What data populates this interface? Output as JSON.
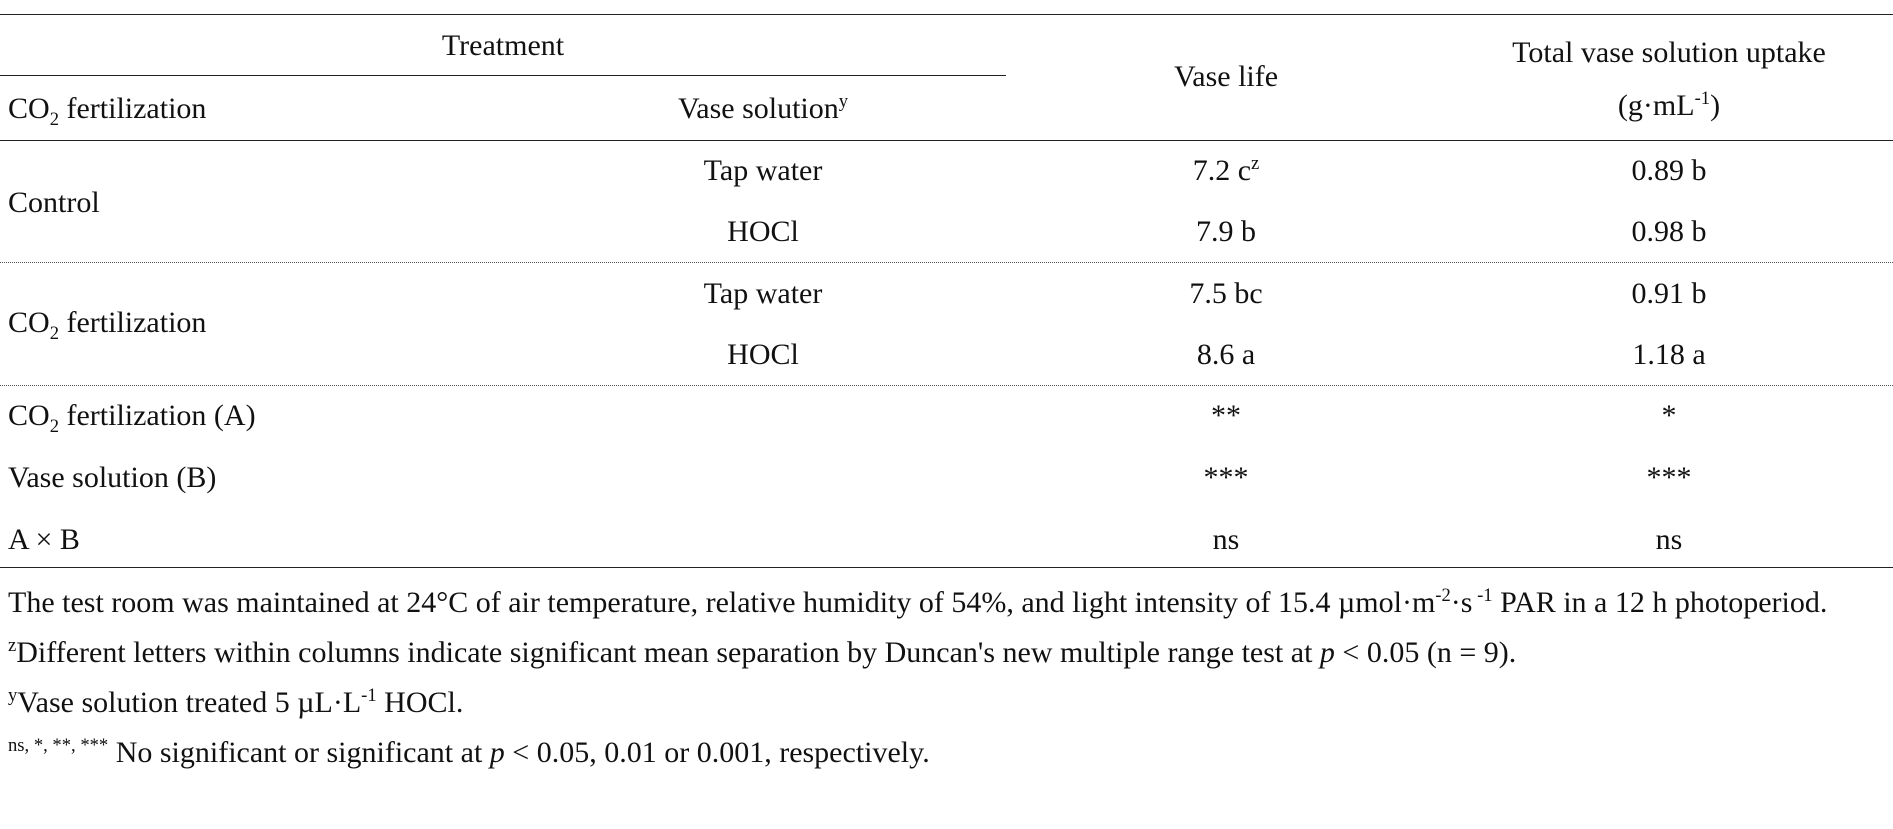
{
  "table": {
    "header": {
      "treatment": "Treatment",
      "co2_column": [
        "CO",
        {
          "sub": "2"
        },
        " fertilization"
      ],
      "solution_column": [
        "Vase solution",
        {
          "sup": "y"
        }
      ],
      "vase_life": "Vase life",
      "uptake_line1": "Total vase solution uptake",
      "uptake_line2": [
        "(g·mL",
        {
          "sup": "-1"
        },
        ")"
      ]
    },
    "groups": [
      {
        "label": "Control",
        "rows": [
          {
            "solution": "Tap water",
            "vase_life": [
              "7.2 c",
              {
                "sup": "z"
              }
            ],
            "uptake": "0.89 b"
          },
          {
            "solution": "HOCl",
            "vase_life": "7.9 b",
            "uptake": "0.98 b"
          }
        ]
      },
      {
        "label": [
          "CO",
          {
            "sub": "2"
          },
          " fertilization"
        ],
        "rows": [
          {
            "solution": "Tap water",
            "vase_life": "7.5 bc",
            "uptake": "0.91 b"
          },
          {
            "solution": "HOCl",
            "vase_life": "8.6 a",
            "uptake": "1.18 a"
          }
        ]
      }
    ],
    "anova": [
      {
        "label": [
          "CO",
          {
            "sub": "2"
          },
          " fertilization (A)"
        ],
        "vase_life": "**",
        "uptake": "*"
      },
      {
        "label": "Vase solution (B)",
        "vase_life": "***",
        "uptake": "***"
      },
      {
        "label": "A × B",
        "vase_life": "ns",
        "uptake": "ns"
      }
    ],
    "notes": [
      [
        "The test room was maintained at 24°C of air temperature, relative humidity of 54%, and light intensity of 15.4 µmol·m",
        {
          "sup": "-2"
        },
        "·s",
        {
          "sup": " -1"
        },
        " PAR in a 12 h photoperiod."
      ],
      [
        {
          "sup": "z"
        },
        "Different letters within columns indicate significant mean separation by Duncan's new multiple range test at ",
        {
          "i": "p"
        },
        " < 0.05 (n = 9)."
      ],
      [
        {
          "sup": "y"
        },
        "Vase solution treated 5 µL·L",
        {
          "sup": "-1"
        },
        " HOCl."
      ],
      [
        {
          "sup": "ns, *, **, ***"
        },
        " No significant or significant at ",
        {
          "i": "p"
        },
        " < 0.05, 0.01 or 0.001, respectively."
      ]
    ]
  }
}
